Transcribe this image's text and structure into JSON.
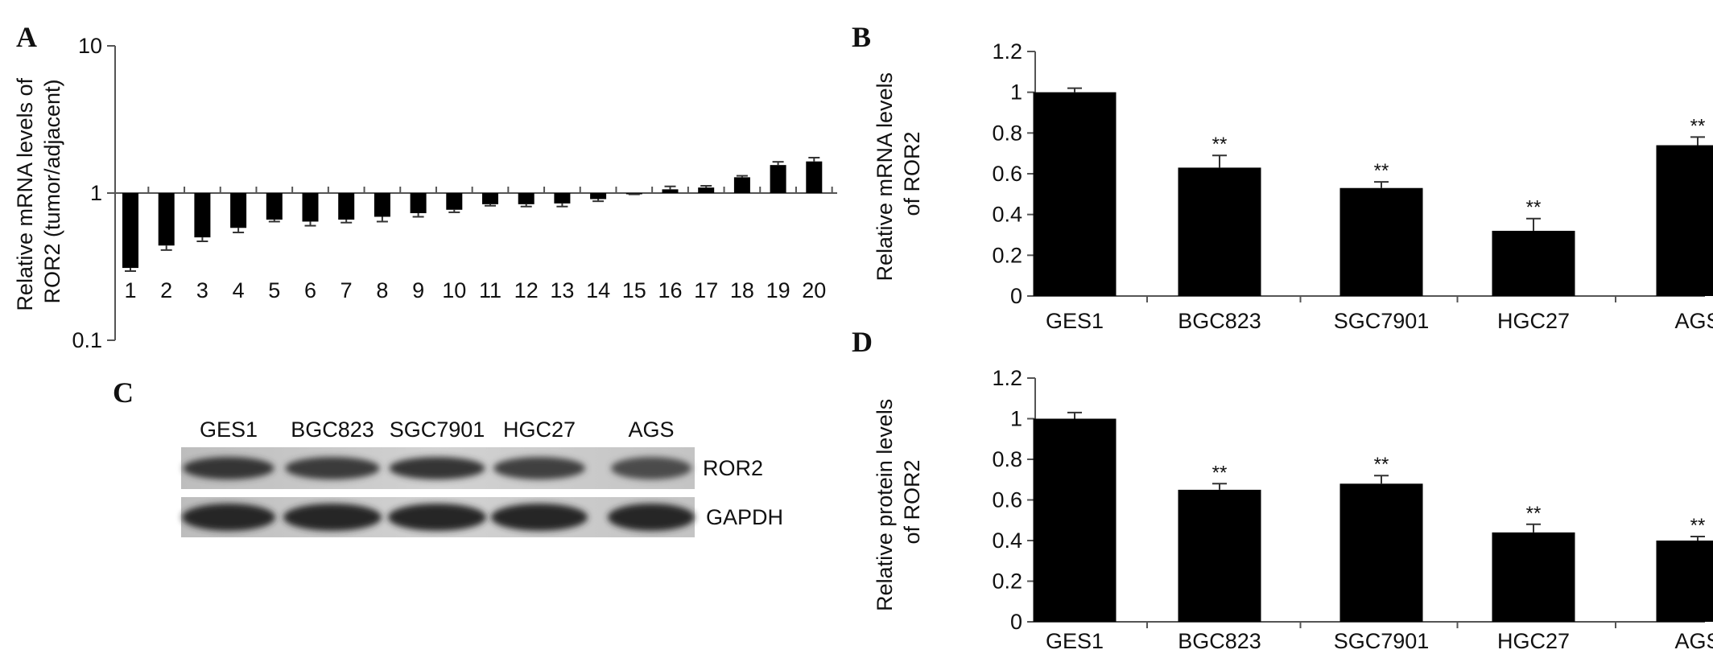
{
  "panels": {
    "A": {
      "letter": "A"
    },
    "B": {
      "letter": "B"
    },
    "C": {
      "letter": "C"
    },
    "D": {
      "letter": "D"
    }
  },
  "western_blot": {
    "lanes": [
      "GES1",
      "BGC823",
      "SGC7901",
      "HGC27",
      "AGS"
    ],
    "rows": [
      "ROR2",
      "GAPDH"
    ],
    "band_intensity": {
      "ROR2": [
        0.9,
        0.85,
        0.9,
        0.8,
        0.7
      ],
      "GAPDH": [
        1.0,
        1.0,
        1.0,
        1.0,
        1.0
      ]
    }
  },
  "chart_data": [
    {
      "id": "A",
      "type": "bar",
      "ylabel": "Relative mRNA levels of ROR2 (tumor/adjacent)",
      "yscale": "log",
      "ylim": [
        0.1,
        10
      ],
      "yticks": [
        "10",
        "1",
        "0.1"
      ],
      "baseline": 1,
      "categories": [
        "1",
        "2",
        "3",
        "4",
        "5",
        "6",
        "7",
        "8",
        "9",
        "10",
        "11",
        "12",
        "13",
        "14",
        "15",
        "16",
        "17",
        "18",
        "19",
        "20"
      ],
      "values": [
        0.31,
        0.44,
        0.5,
        0.58,
        0.66,
        0.64,
        0.66,
        0.69,
        0.73,
        0.77,
        0.84,
        0.84,
        0.85,
        0.91,
        0.99,
        1.06,
        1.09,
        1.28,
        1.55,
        1.64
      ],
      "errors": [
        0.015,
        0.03,
        0.03,
        0.04,
        0.02,
        0.04,
        0.03,
        0.05,
        0.04,
        0.03,
        0.02,
        0.03,
        0.04,
        0.03,
        0.01,
        0.05,
        0.03,
        0.03,
        0.08,
        0.1
      ]
    },
    {
      "id": "B",
      "type": "bar",
      "ylabel": "Relative mRNA levels of ROR2",
      "ylim": [
        0,
        1.2
      ],
      "yticks": [
        "0",
        "0.2",
        "0.4",
        "0.6",
        "0.8",
        "1",
        "1.2"
      ],
      "categories": [
        "GES1",
        "BGC823",
        "SGC7901",
        "HGC27",
        "AGS"
      ],
      "values": [
        1.0,
        0.63,
        0.53,
        0.32,
        0.74
      ],
      "errors": [
        0.02,
        0.06,
        0.03,
        0.06,
        0.04
      ],
      "significance": [
        "",
        "**",
        "**",
        "**",
        "**"
      ]
    },
    {
      "id": "D",
      "type": "bar",
      "ylabel": "Relative protein levels of ROR2",
      "ylim": [
        0,
        1.2
      ],
      "yticks": [
        "0",
        "0.2",
        "0.4",
        "0.6",
        "0.8",
        "1",
        "1.2"
      ],
      "categories": [
        "GES1",
        "BGC823",
        "SGC7901",
        "HGC27",
        "AGS"
      ],
      "values": [
        1.0,
        0.65,
        0.68,
        0.44,
        0.4
      ],
      "errors": [
        0.03,
        0.03,
        0.04,
        0.04,
        0.02
      ],
      "significance": [
        "",
        "**",
        "**",
        "**",
        "**"
      ]
    }
  ]
}
